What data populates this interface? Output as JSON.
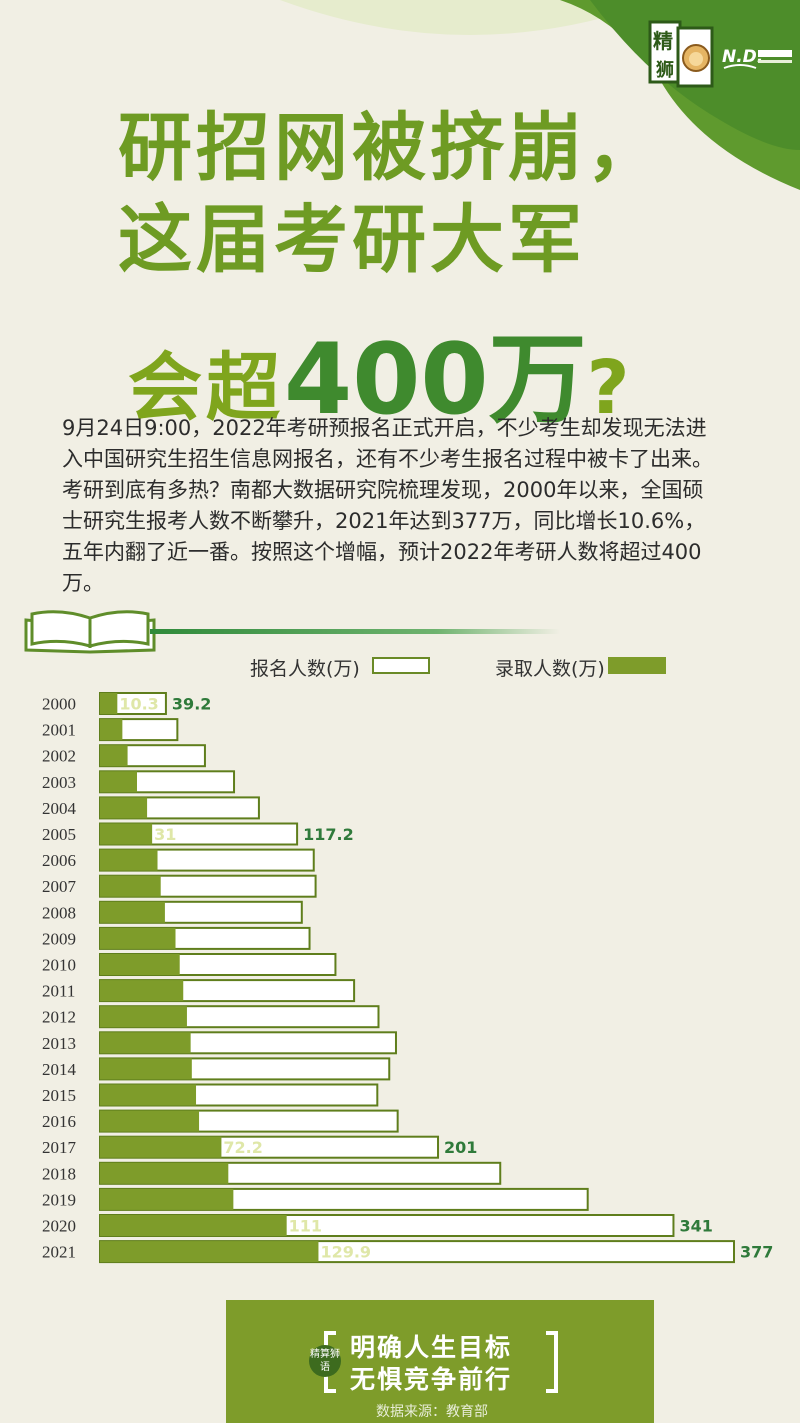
{
  "title": {
    "line1": "研招网被挤崩，",
    "line2": "这届考研大军",
    "line3_prefix": "会超",
    "line3_number": "400万",
    "line3_suffix": "?"
  },
  "intro_text": "9月24日9:00，2022年考研预报名正式开启，不少考生却发现无法进入中国研究生招生信息网报名，还有不少考生报名过程中被卡了出来。考研到底有多热？南都大数据研究院梳理发现，2000年以来，全国硕士研究生报考人数不断攀升，2021年达到377万，同比增长10.6%，五年内翻了近一番。按照这个增幅，预计2022年考研人数将超过400万。",
  "logo": {
    "badge": "精算狮",
    "partner": "N.D. 南都大数据研究院"
  },
  "legend": {
    "applicants": "报名人数(万)",
    "admitted": "录取人数(万)"
  },
  "colors": {
    "accent_green": "#7e9c2a",
    "dark_green": "#3f8a2e",
    "title_green": "#6e9b23",
    "label_green": "#2f7a3a",
    "background": "#f1efe4"
  },
  "chart_data": {
    "type": "bar",
    "orientation": "horizontal",
    "categories": [
      "2000",
      "2001",
      "2002",
      "2003",
      "2004",
      "2005",
      "2006",
      "2007",
      "2008",
      "2009",
      "2010",
      "2011",
      "2012",
      "2013",
      "2014",
      "2015",
      "2016",
      "2017",
      "2018",
      "2019",
      "2020",
      "2021"
    ],
    "series": [
      {
        "name": "报名人数(万)",
        "style": "outline",
        "values": [
          39.2,
          46,
          62.4,
          79.7,
          94.5,
          117.2,
          127.1,
          128.2,
          120,
          124.6,
          140,
          151.1,
          165.6,
          176,
          172,
          164.9,
          177,
          201,
          238,
          290,
          341,
          377
        ]
      },
      {
        "name": "录取人数(万)",
        "style": "filled",
        "values": [
          10.3,
          13.3,
          16.4,
          22.0,
          28.0,
          31,
          34.2,
          36.1,
          38.6,
          44.9,
          47.4,
          49.5,
          51.7,
          53.9,
          54.6,
          57.1,
          58.9,
          72.2,
          76.3,
          79.3,
          111,
          129.9
        ]
      }
    ],
    "data_labels": [
      {
        "category": "2000",
        "admitted": "10.3",
        "applicants": "39.2"
      },
      {
        "category": "2005",
        "admitted": "31",
        "applicants": "117.2"
      },
      {
        "category": "2017",
        "admitted": "72.2",
        "applicants": "201"
      },
      {
        "category": "2020",
        "admitted": "111",
        "applicants": "341"
      },
      {
        "category": "2021",
        "admitted": "129.9",
        "applicants": "377"
      }
    ],
    "xlim": [
      0,
      377
    ],
    "grid": false,
    "legend_position": "top"
  },
  "footer": {
    "badge": "精算狮语",
    "slogan_line1": "明确人生目标",
    "slogan_line2": "无惧竞争前行",
    "source": "数据来源：教育部"
  }
}
